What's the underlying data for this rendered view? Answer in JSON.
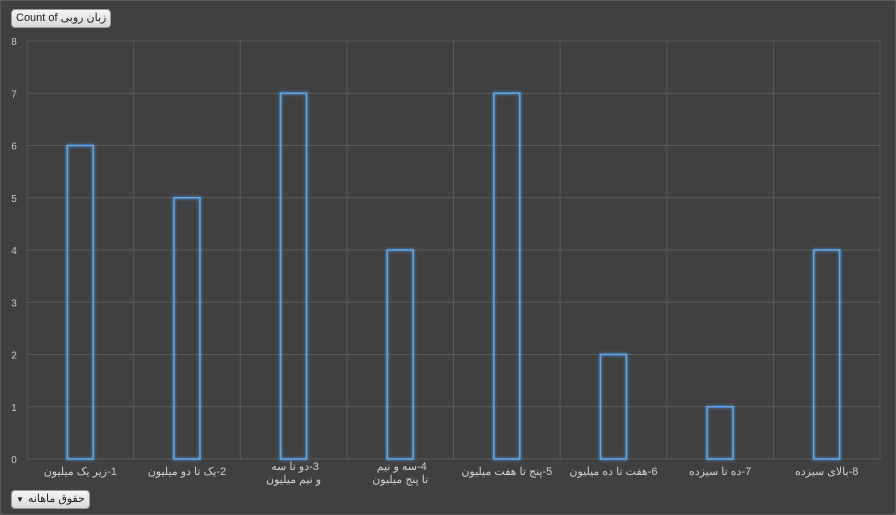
{
  "value_field_button": "Count of زبان روبی",
  "axis_field_button": "حقوق ماهانه",
  "chart_data": {
    "type": "bar",
    "title": "",
    "xlabel": "",
    "ylabel": "",
    "categories": [
      "1-زیر یک میلیون",
      "2-یک تا دو میلیون",
      "3-دو تا سه و نیم میلیون",
      "4-سه و نیم تا پنج میلیون",
      "5-پنج تا هفت میلیون",
      "6-هفت تا ده میلیون",
      "7-ده تا سیزده",
      "8-بالای سیزده"
    ],
    "series": [
      {
        "name": "Count of زبان روبی",
        "values": [
          6,
          5,
          7,
          4,
          7,
          2,
          1,
          4
        ]
      }
    ],
    "ylim": [
      0,
      8
    ],
    "yticks": [
      "0",
      "1",
      "2",
      "3",
      "4",
      "5",
      "6",
      "7",
      "8"
    ],
    "grid": true,
    "legend": "none",
    "colors": {
      "bar_outline": "#5aa9f0",
      "grid": "#5a5a5a",
      "background": "#404040"
    }
  }
}
